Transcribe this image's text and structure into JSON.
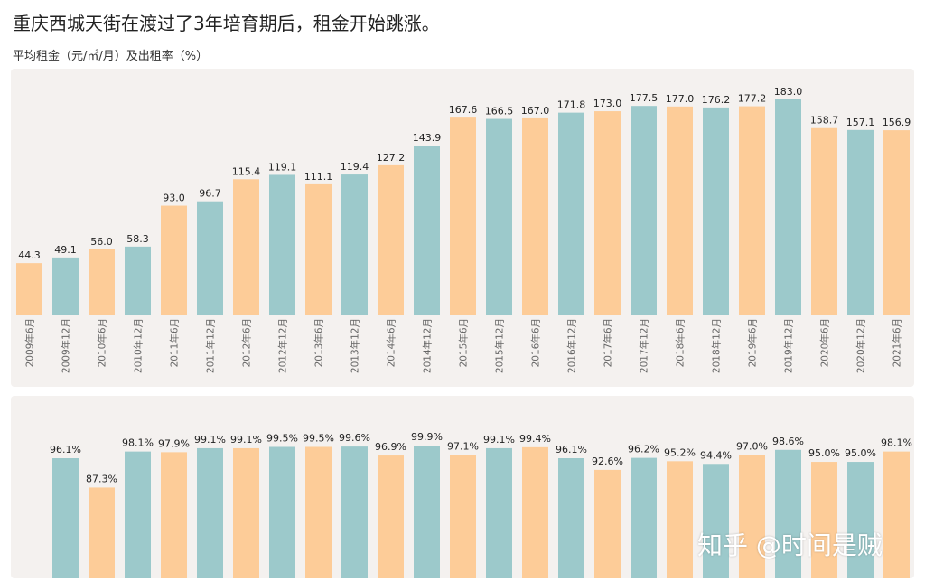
{
  "header": {
    "title": "重庆西城天街在渡过了3年培育期后，租金开始跳涨。",
    "subtitle": "平均租金（元/㎡/月）及出租率（%）"
  },
  "watermark": "知乎 @时间是贼",
  "colors": {
    "orange": "#fdcc98",
    "teal": "#9cc9cb",
    "panel": "#f4f1ef"
  },
  "chart_data": [
    {
      "type": "bar",
      "title": "",
      "categories": [
        "2009年6月",
        "2009年12月",
        "2010年6月",
        "2010年12月",
        "2011年6月",
        "2011年12月",
        "2012年6月",
        "2012年12月",
        "2013年6月",
        "2013年12月",
        "2014年6月",
        "2014年12月",
        "2015年6月",
        "2015年12月",
        "2016年6月",
        "2016年12月",
        "2017年6月",
        "2017年12月",
        "2018年6月",
        "2018年12月",
        "2019年6月",
        "2019年12月",
        "2020年6月",
        "2020年12月",
        "2021年6月"
      ],
      "values": [
        44.3,
        49.1,
        56.0,
        58.3,
        93.0,
        96.7,
        115.4,
        119.1,
        111.1,
        119.4,
        127.2,
        143.9,
        167.6,
        166.5,
        167.0,
        171.8,
        173.0,
        177.5,
        177.0,
        176.2,
        177.2,
        183.0,
        158.7,
        157.1,
        156.9
      ],
      "value_labels": [
        "44.3",
        "49.1",
        "56.0",
        "58.3",
        "93.0",
        "96.7",
        "115.4",
        "119.1",
        "111.1",
        "119.4",
        "127.2",
        "143.9",
        "167.6",
        "166.5",
        "167.0",
        "171.8",
        "173.0",
        "177.5",
        "177.0",
        "176.2",
        "177.2",
        "183.0",
        "158.7",
        "157.1",
        "156.9"
      ],
      "bar_colors": [
        "orange",
        "teal",
        "orange",
        "teal",
        "orange",
        "teal",
        "orange",
        "teal",
        "orange",
        "teal",
        "orange",
        "teal",
        "orange",
        "teal",
        "orange",
        "teal",
        "orange",
        "teal",
        "orange",
        "teal",
        "orange",
        "teal",
        "orange",
        "teal",
        "orange"
      ],
      "ylim": [
        0,
        190
      ]
    },
    {
      "type": "bar",
      "title": "",
      "values": [
        96.1,
        87.3,
        98.1,
        97.9,
        99.1,
        99.1,
        99.5,
        99.5,
        99.6,
        96.9,
        99.9,
        97.1,
        99.1,
        99.4,
        96.1,
        92.6,
        96.2,
        95.2,
        94.4,
        97.0,
        98.6,
        95.0,
        95.0,
        98.1
      ],
      "value_labels": [
        "96.1%",
        "87.3%",
        "98.1%",
        "97.9%",
        "99.1%",
        "99.1%",
        "99.5%",
        "99.5%",
        "99.6%",
        "96.9%",
        "99.9%",
        "97.1%",
        "99.1%",
        "99.4%",
        "96.1%",
        "92.6%",
        "96.2%",
        "95.2%",
        "94.4%",
        "97.0%",
        "98.6%",
        "95.0%",
        "95.0%",
        "98.1%"
      ],
      "bar_colors": [
        "teal",
        "orange",
        "teal",
        "orange",
        "teal",
        "orange",
        "teal",
        "orange",
        "teal",
        "orange",
        "teal",
        "orange",
        "teal",
        "orange",
        "teal",
        "orange",
        "teal",
        "orange",
        "teal",
        "orange",
        "teal",
        "orange",
        "teal",
        "orange"
      ],
      "ylim": [
        60,
        100
      ]
    }
  ]
}
